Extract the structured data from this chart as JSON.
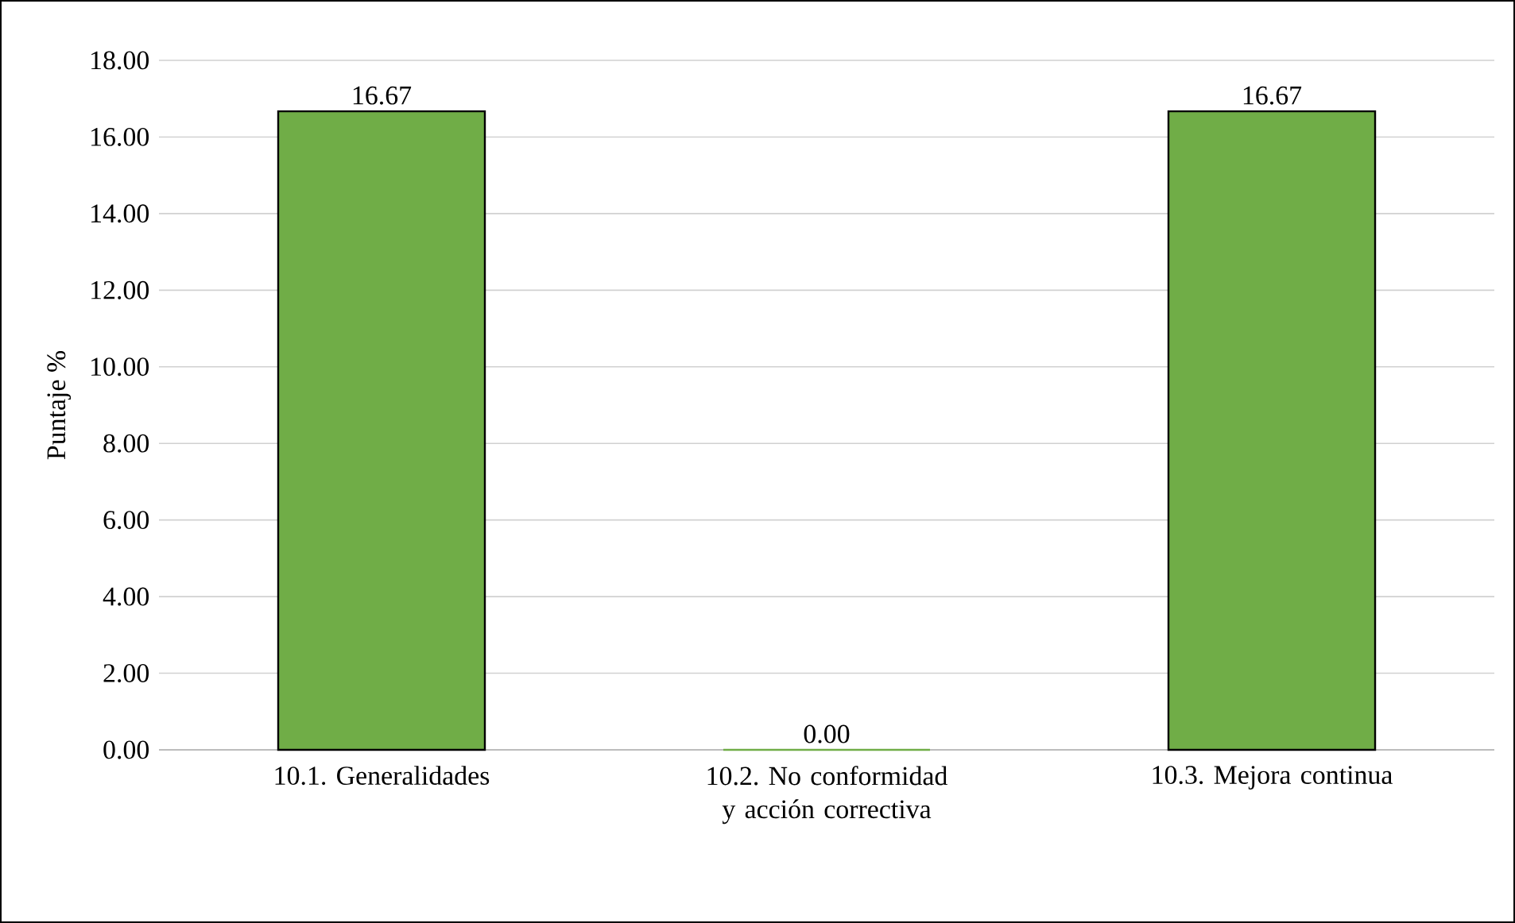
{
  "chart_data": {
    "type": "bar",
    "ylabel": "Puntaje %",
    "categories": [
      "10.1. Generalidades",
      "10.2. No conformidad y acción correctiva",
      "10.3. Mejora continua"
    ],
    "values": [
      16.67,
      0,
      16.67
    ],
    "value_labels": [
      "16.67",
      "0.00",
      "16.67"
    ],
    "color": "#70ad47",
    "ylim": [
      0,
      18
    ],
    "yticks": [
      {
        "value": 0,
        "label": "0.00"
      },
      {
        "value": 2,
        "label": "2.00"
      },
      {
        "value": 4,
        "label": "4.00"
      },
      {
        "value": 6,
        "label": "6.00"
      },
      {
        "value": 8,
        "label": "8.00"
      },
      {
        "value": 10,
        "label": "10.00"
      },
      {
        "value": 12,
        "label": "12.00"
      },
      {
        "value": 14,
        "label": "14.00"
      },
      {
        "value": 16,
        "label": "16.00"
      },
      {
        "value": 18,
        "label": "18.00"
      }
    ],
    "grid": "y"
  }
}
